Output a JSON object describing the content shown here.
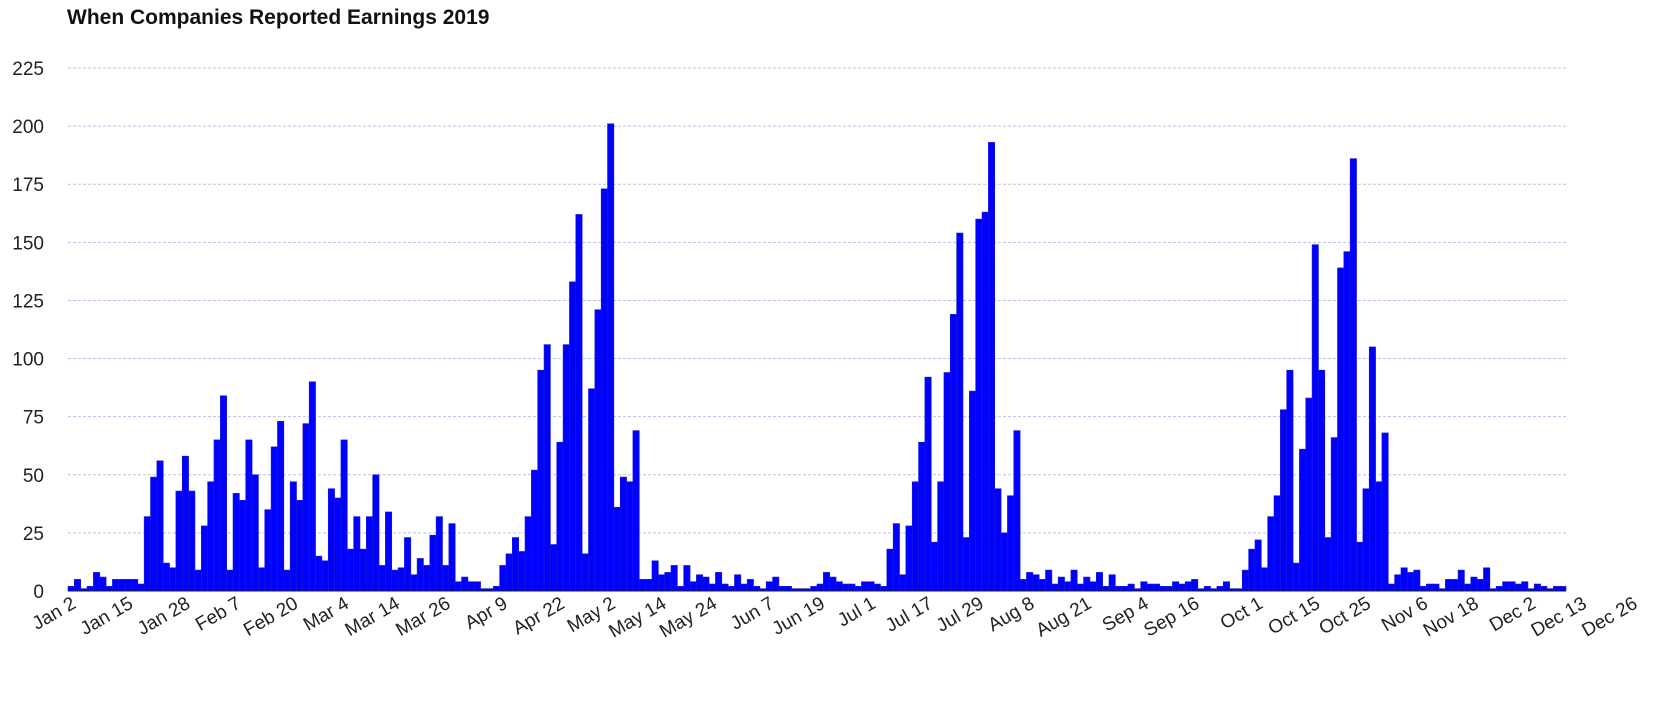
{
  "chart_data": {
    "type": "bar",
    "title": "When Companies Reported Earnings 2019",
    "xlabel": "",
    "ylabel": "",
    "ylim": [
      0,
      225
    ],
    "yticks": [
      0,
      25,
      50,
      75,
      100,
      125,
      150,
      175,
      200,
      225
    ],
    "grid": true,
    "legend": "none",
    "x_tick_labels": [
      {
        "label": "Jan 2",
        "index": 0
      },
      {
        "label": "Jan 15",
        "index": 9
      },
      {
        "label": "Jan 28",
        "index": 18
      },
      {
        "label": "Feb 7",
        "index": 26
      },
      {
        "label": "Feb 20",
        "index": 35
      },
      {
        "label": "Mar 4",
        "index": 43
      },
      {
        "label": "Mar 14",
        "index": 51
      },
      {
        "label": "Mar 26",
        "index": 59
      },
      {
        "label": "Apr 9",
        "index": 68
      },
      {
        "label": "Apr 22",
        "index": 77
      },
      {
        "label": "May 2",
        "index": 85
      },
      {
        "label": "May 14",
        "index": 93
      },
      {
        "label": "May 24",
        "index": 101
      },
      {
        "label": "Jun 7",
        "index": 110
      },
      {
        "label": "Jun 19",
        "index": 118
      },
      {
        "label": "Jul 1",
        "index": 126
      },
      {
        "label": "Jul 17",
        "index": 135
      },
      {
        "label": "Jul 29",
        "index": 143
      },
      {
        "label": "Aug 8",
        "index": 151
      },
      {
        "label": "Aug 21",
        "index": 160
      },
      {
        "label": "Sep 4",
        "index": 169
      },
      {
        "label": "Sep 16",
        "index": 177
      },
      {
        "label": "Oct 1",
        "index": 187
      },
      {
        "label": "Oct 15",
        "index": 196
      },
      {
        "label": "Oct 25",
        "index": 204
      },
      {
        "label": "Nov 6",
        "index": 213
      },
      {
        "label": "Nov 18",
        "index": 221
      },
      {
        "label": "Dec 2",
        "index": 230
      },
      {
        "label": "Dec 13",
        "index": 238
      },
      {
        "label": "Dec 26",
        "index": 246
      }
    ],
    "values": [
      2,
      5,
      1,
      2,
      8,
      6,
      2,
      5,
      5,
      5,
      5,
      3,
      32,
      49,
      56,
      12,
      10,
      43,
      58,
      43,
      9,
      28,
      47,
      65,
      84,
      9,
      42,
      39,
      65,
      50,
      10,
      35,
      62,
      73,
      9,
      47,
      39,
      72,
      90,
      15,
      13,
      44,
      40,
      65,
      18,
      32,
      18,
      32,
      50,
      11,
      34,
      9,
      10,
      23,
      7,
      14,
      11,
      24,
      32,
      11,
      29,
      4,
      6,
      4,
      4,
      1,
      1,
      2,
      11,
      16,
      23,
      17,
      32,
      52,
      95,
      106,
      20,
      64,
      106,
      133,
      162,
      16,
      87,
      121,
      173,
      201,
      36,
      49,
      47,
      69,
      5,
      5,
      13,
      7,
      8,
      11,
      2,
      11,
      4,
      7,
      6,
      3,
      8,
      3,
      2,
      7,
      3,
      5,
      2,
      1,
      4,
      6,
      2,
      2,
      1,
      1,
      1,
      2,
      3,
      8,
      6,
      4,
      3,
      3,
      2,
      4,
      4,
      3,
      2,
      18,
      29,
      7,
      28,
      47,
      64,
      92,
      21,
      47,
      94,
      119,
      154,
      23,
      86,
      160,
      163,
      193,
      44,
      25,
      41,
      69,
      5,
      8,
      7,
      5,
      9,
      3,
      6,
      4,
      9,
      3,
      6,
      4,
      8,
      2,
      7,
      2,
      2,
      3,
      1,
      4,
      3,
      3,
      2,
      2,
      4,
      3,
      4,
      5,
      1,
      2,
      1,
      2,
      4,
      1,
      1,
      9,
      18,
      22,
      10,
      32,
      41,
      78,
      95,
      12,
      61,
      83,
      149,
      95,
      23,
      66,
      139,
      146,
      186,
      21,
      44,
      105,
      47,
      68,
      3,
      7,
      10,
      8,
      9,
      2,
      3,
      3,
      1,
      5,
      5,
      9,
      3,
      6,
      5,
      10,
      1,
      2,
      4,
      4,
      3,
      4,
      1,
      3,
      2,
      1,
      2,
      2
    ]
  },
  "colors": {
    "bar": "#0000ff",
    "bar_edge": "#1a1ad6",
    "grid": "#bfbfe6",
    "axis": "#222222"
  }
}
